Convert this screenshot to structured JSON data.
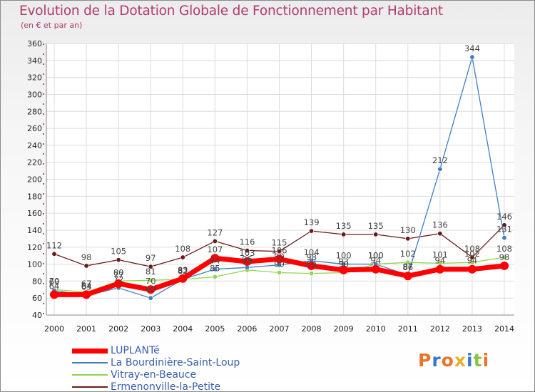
{
  "header": {
    "title": "Evolution de la Dotation Globale de Fonctionnement par Habitant",
    "subtitle": "(en € et par an)"
  },
  "logo": {
    "text": "Proxiti",
    "colors": [
      "#e8752a",
      "#3a78c8",
      "#e8752a",
      "#e8b02a",
      "#3a78c8",
      "#8bc34a",
      "#e8752a"
    ]
  },
  "chart_data": {
    "type": "line",
    "title": "Evolution de la Dotation Globale de Fonctionnement par Habitant",
    "subtitle": "(en € et par an)",
    "xlabel": "",
    "ylabel": "",
    "ylim": [
      40,
      360
    ],
    "yticks": [
      40,
      60,
      80,
      100,
      120,
      140,
      160,
      180,
      200,
      220,
      240,
      260,
      280,
      300,
      320,
      340,
      360
    ],
    "grid": true,
    "legend_position": "bottom-left",
    "categories": [
      "2000",
      "2001",
      "2002",
      "2003",
      "2004",
      "2005",
      "2006",
      "2007",
      "2008",
      "2009",
      "2010",
      "2011",
      "2012",
      "2013",
      "2014"
    ],
    "series": [
      {
        "name": "LUPLANTé",
        "color": "#ff0000",
        "values": [
          64,
          64,
          77,
          70,
          83,
          107,
          103,
          106,
          98,
          93,
          94,
          86,
          94,
          94,
          98
        ]
      },
      {
        "name": "La Bourdinière-Saint-Loup",
        "color": "#3f7fc4",
        "values": [
          69,
          63,
          72,
          60,
          82,
          94,
          96,
          99,
          104,
          100,
          100,
          87,
          212,
          344,
          131
        ]
      },
      {
        "name": "Vitray-en-Beauce",
        "color": "#90d64e",
        "values": [
          70,
          67,
          80,
          81,
          82,
          85,
          93,
          90,
          89,
          90,
          100,
          102,
          101,
          102,
          108
        ]
      },
      {
        "name": "Ermenonville-la-Petite",
        "color": "#6b1a1a",
        "values": [
          112,
          98,
          105,
          97,
          108,
          127,
          116,
          115,
          139,
          135,
          135,
          130,
          136,
          108,
          146
        ]
      }
    ],
    "data_labels": [
      [
        64,
        64,
        77,
        70,
        83,
        107,
        103,
        106,
        98,
        93,
        94,
        86,
        94,
        94,
        98
      ],
      [
        69,
        63,
        72,
        60,
        82,
        94,
        96,
        99,
        104,
        100,
        100,
        87,
        212,
        344,
        131
      ],
      [
        70,
        67,
        80,
        81,
        82,
        85,
        93,
        90,
        89,
        90,
        100,
        102,
        101,
        102,
        108
      ],
      [
        112,
        98,
        105,
        97,
        108,
        127,
        116,
        115,
        139,
        135,
        135,
        130,
        136,
        108,
        146
      ]
    ]
  }
}
